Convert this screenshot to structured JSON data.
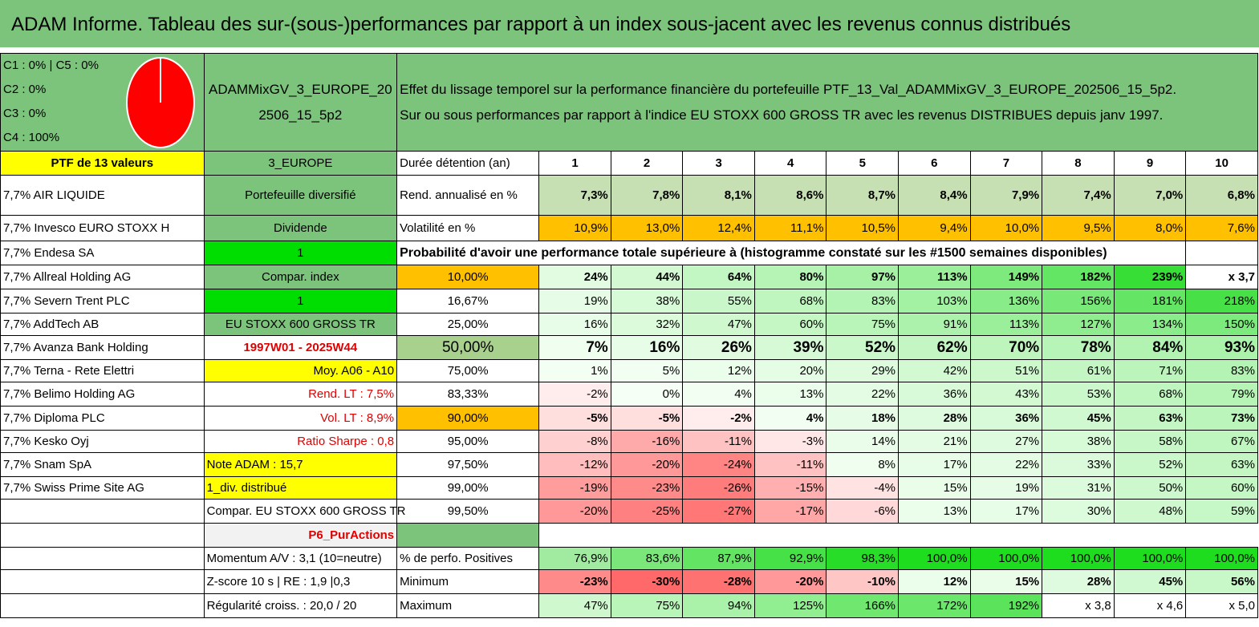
{
  "title": "ADAM Informe. Tableau des sur-(sous-)performances par rapport à un index sous-jacent avec les revenus connus distribués",
  "legend": [
    "C1 : 0% | C5 : 0%",
    "C2 : 0%",
    "C3 : 0%",
    "C4 : 100%"
  ],
  "pie_color": "#ff0000",
  "portfolio_code": "ADAMMixGV_3_EUROPE_202506_15_5p2",
  "description": [
    "Effet du lissage temporel sur la performance financière du portefeuille PTF_13_Val_ADAMMixGV_3_EUROPE_202506_15_5p2.",
    "Sur ou sous performances par rapport à l'indice EU STOXX 600 GROSS TR avec les revenus DISTRIBUES depuis janv 1997."
  ],
  "ptf_label": "PTF de 13 valeurs",
  "region": "3_EUROPE",
  "duration_label": "Durée détention (an)",
  "years": [
    "1",
    "2",
    "3",
    "4",
    "5",
    "6",
    "7",
    "8",
    "9",
    "10"
  ],
  "holdings": [
    "7,7% AIR LIQUIDE",
    "7,7% Invesco EURO STOXX H",
    "7,7% Endesa SA",
    "7,7% Allreal Holding AG",
    "7,7% Severn Trent PLC",
    "7,7% AddTech AB",
    "7,7% Avanza Bank Holding",
    "7,7% Terna - Rete Elettri",
    "7,7% Belimo Holding AG",
    "7,7% Diploma PLC",
    "7,7% Kesko Oyj",
    "7,7% Snam SpA",
    "7,7% Swiss Prime Site AG"
  ],
  "info": {
    "type": "Portefeuille diversifié",
    "dividend": "Dividende",
    "one_a": "1",
    "compar": "Compar. index",
    "one_b": "1",
    "index": "EU STOXX 600 GROSS TR",
    "period": "1997W01 - 2025W44",
    "moy": "Moy. A06 - A10",
    "rend": "Rend. LT : 7,5%",
    "vol": "Vol. LT : 8,9%",
    "sharpe": "Ratio Sharpe : 0,8",
    "note": "Note ADAM : 15,7",
    "div": "1_div. distribué",
    "compar2": "Compar. EU STOXX 600 GROSS TR",
    "p6": "P6_PurActions",
    "momentum": "Momentum A/V : 3,1 (10=neutre)",
    "zscore": "Z-score 10 s | RE : 1,9 |0,3",
    "regul": "Régularité croiss. : 20,0 / 20"
  },
  "rend_label": "Rend. annualisé en %",
  "rend": [
    "7,3%",
    "7,8%",
    "8,1%",
    "8,6%",
    "8,7%",
    "8,4%",
    "7,9%",
    "7,4%",
    "7,0%",
    "6,8%"
  ],
  "vol_label": "Volatilité en %",
  "vol": [
    "10,9%",
    "13,0%",
    "12,4%",
    "11,1%",
    "10,5%",
    "9,4%",
    "10,0%",
    "9,5%",
    "8,0%",
    "7,6%"
  ],
  "prob_label": "Probabilité d'avoir une performance totale supérieure à (histogramme constaté sur les #1500 semaines disponibles)",
  "prob_rows": [
    {
      "p": "10,00%",
      "v": [
        "24%",
        "44%",
        "64%",
        "80%",
        "97%",
        "113%",
        "149%",
        "182%",
        "239%",
        "x 3,7"
      ]
    },
    {
      "p": "16,67%",
      "v": [
        "19%",
        "38%",
        "55%",
        "68%",
        "83%",
        "103%",
        "136%",
        "156%",
        "181%",
        "218%"
      ]
    },
    {
      "p": "25,00%",
      "v": [
        "16%",
        "32%",
        "47%",
        "60%",
        "75%",
        "91%",
        "113%",
        "127%",
        "134%",
        "150%"
      ]
    },
    {
      "p": "50,00%",
      "v": [
        "7%",
        "16%",
        "26%",
        "39%",
        "52%",
        "62%",
        "70%",
        "78%",
        "84%",
        "93%"
      ]
    },
    {
      "p": "75,00%",
      "v": [
        "1%",
        "5%",
        "12%",
        "20%",
        "29%",
        "42%",
        "51%",
        "61%",
        "71%",
        "83%"
      ]
    },
    {
      "p": "83,33%",
      "v": [
        "-2%",
        "0%",
        "4%",
        "13%",
        "22%",
        "36%",
        "43%",
        "53%",
        "68%",
        "79%"
      ]
    },
    {
      "p": "90,00%",
      "v": [
        "-5%",
        "-5%",
        "-2%",
        "4%",
        "18%",
        "28%",
        "36%",
        "45%",
        "63%",
        "73%"
      ]
    },
    {
      "p": "95,00%",
      "v": [
        "-8%",
        "-16%",
        "-11%",
        "-3%",
        "14%",
        "21%",
        "27%",
        "38%",
        "58%",
        "67%"
      ]
    },
    {
      "p": "97,50%",
      "v": [
        "-12%",
        "-20%",
        "-24%",
        "-11%",
        "8%",
        "17%",
        "22%",
        "33%",
        "52%",
        "63%"
      ]
    },
    {
      "p": "99,00%",
      "v": [
        "-19%",
        "-23%",
        "-26%",
        "-15%",
        "-4%",
        "15%",
        "19%",
        "31%",
        "50%",
        "60%"
      ]
    },
    {
      "p": "99,50%",
      "v": [
        "-20%",
        "-25%",
        "-27%",
        "-17%",
        "-6%",
        "13%",
        "17%",
        "30%",
        "48%",
        "59%"
      ]
    }
  ],
  "pos_label": "% de perfo. Positives",
  "pos": [
    "76,9%",
    "83,6%",
    "87,9%",
    "92,9%",
    "98,3%",
    "100,0%",
    "100,0%",
    "100,0%",
    "100,0%",
    "100,0%"
  ],
  "min_label": "Minimum",
  "min": [
    "-23%",
    "-30%",
    "-28%",
    "-20%",
    "-10%",
    "12%",
    "15%",
    "28%",
    "45%",
    "56%"
  ],
  "max_label": "Maximum",
  "max": [
    "47%",
    "75%",
    "94%",
    "125%",
    "166%",
    "172%",
    "192%",
    "x 3,8",
    "x 4,6",
    "x 5,0"
  ]
}
